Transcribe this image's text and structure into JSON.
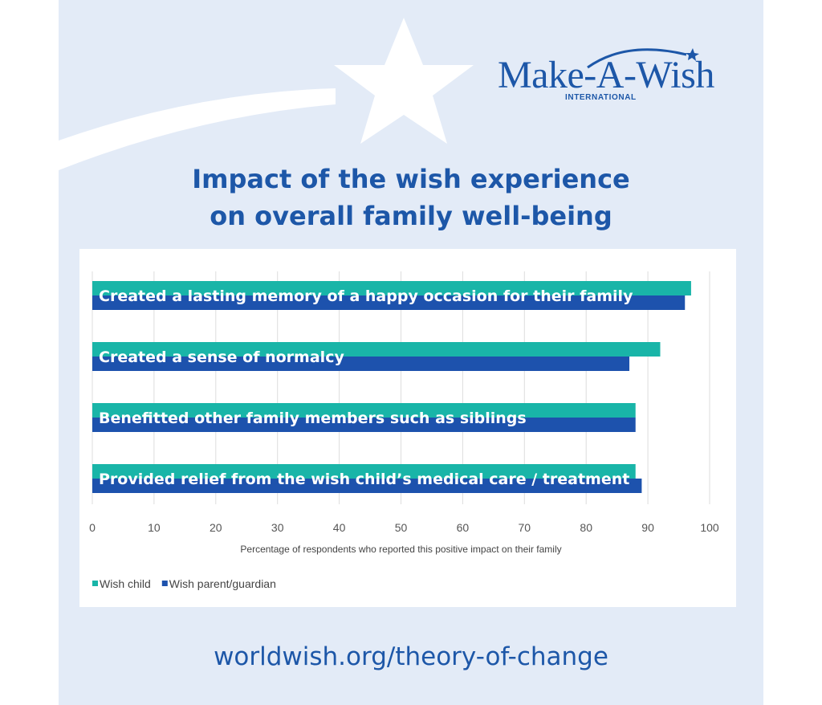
{
  "logo": {
    "wordmark": "Make-A-Wish",
    "subtitle": "INTERNATIONAL",
    "brand_color": "#1d57a8"
  },
  "title_lines": [
    "Impact of the wish experience",
    "on overall family well-being"
  ],
  "url": "worldwish.org/theory-of-change",
  "chart_data": {
    "type": "bar",
    "orientation": "horizontal",
    "categories": [
      "Created a lasting memory of a happy occasion for their family",
      "Created a sense of normalcy",
      "Benefitted other family members such as siblings",
      "Provided relief from the wish child’s medical care / treatment"
    ],
    "series": [
      {
        "name": "Wish child",
        "color": "#19b5a8",
        "values": [
          97,
          92,
          88,
          88
        ]
      },
      {
        "name": "Wish parent/guardian",
        "color": "#1d52ad",
        "values": [
          96,
          87,
          88,
          89
        ]
      }
    ],
    "xlim": [
      0,
      100
    ],
    "xticks": [
      "0",
      "10",
      "20",
      "30",
      "40",
      "50",
      "60",
      "70",
      "80",
      "90",
      "100"
    ],
    "xlabel": "Percentage of respondents who reported this positive impact on their family",
    "grid": true,
    "legend": "bottom-left"
  }
}
